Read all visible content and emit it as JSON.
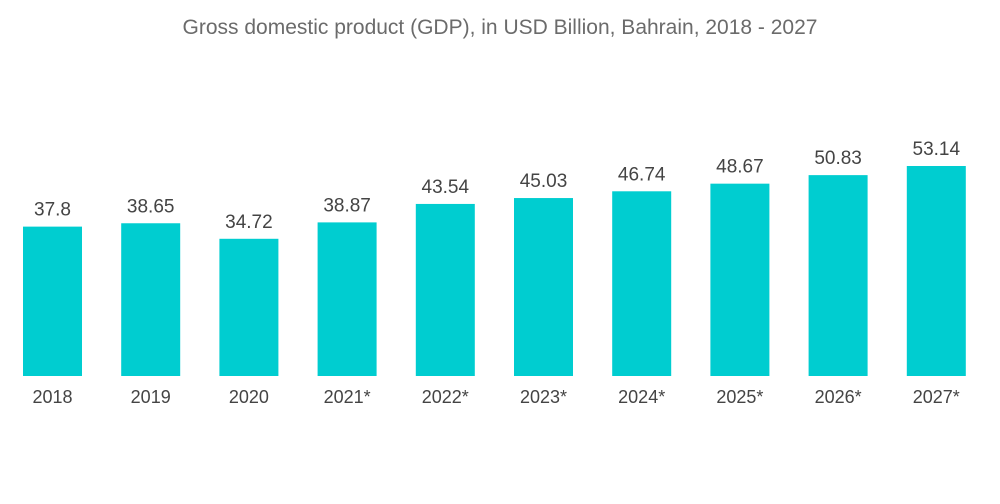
{
  "chart_data": {
    "type": "bar",
    "title": "Gross domestic product (GDP),  in USD Billion, Bahrain, 2018 - 2027",
    "categories": [
      "2018",
      "2019",
      "2020",
      "2021*",
      "2022*",
      "2023*",
      "2024*",
      "2025*",
      "2026*",
      "2027*"
    ],
    "values": [
      37.8,
      38.65,
      34.72,
      38.87,
      43.54,
      45.03,
      46.74,
      48.67,
      50.83,
      53.14
    ],
    "value_labels": [
      "37.8",
      "38.65",
      "34.72",
      "38.87",
      "43.54",
      "45.03",
      "46.74",
      "48.67",
      "50.83",
      "53.14"
    ],
    "xlabel": "",
    "ylabel": "",
    "ylim": [
      0,
      53.14
    ],
    "grid": false,
    "legend": "none",
    "bar_color": "#00CDD0"
  }
}
